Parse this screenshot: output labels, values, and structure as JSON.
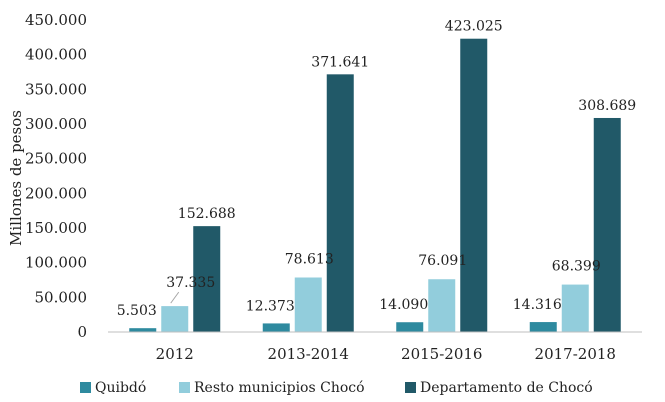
{
  "chart_data": {
    "type": "bar",
    "categories": [
      "2012",
      "2013-2014",
      "2015-2016",
      "2017-2018"
    ],
    "series": [
      {
        "name": "Quibdó",
        "color": "#2e8a9f",
        "values": [
          5503,
          12373,
          14090,
          14316
        ],
        "labels": [
          "5.503",
          "12.373",
          "14.090",
          "14.316"
        ]
      },
      {
        "name": "Resto municipios Chocó",
        "color": "#92cddc",
        "values": [
          37335,
          78613,
          76091,
          68399
        ],
        "labels": [
          "37.335",
          "78.613",
          "76.091",
          "68.399"
        ]
      },
      {
        "name": "Departamento de Chocó",
        "color": "#215968",
        "values": [
          152688,
          371641,
          423025,
          308689
        ],
        "labels": [
          "152.688",
          "371.641",
          "423.025",
          "308.689"
        ]
      }
    ],
    "ylabel": "Millones de pesos",
    "ylim": [
      0,
      450000
    ],
    "yticks": [
      {
        "value": 0,
        "label": "0"
      },
      {
        "value": 50000,
        "label": "50.000"
      },
      {
        "value": 100000,
        "label": "100.000"
      },
      {
        "value": 150000,
        "label": "150.000"
      },
      {
        "value": 200000,
        "label": "200.000"
      },
      {
        "value": 250000,
        "label": "250.000"
      },
      {
        "value": 300000,
        "label": "300.000"
      },
      {
        "value": 350000,
        "label": "350.000"
      },
      {
        "value": 400000,
        "label": "400.000"
      },
      {
        "value": 450000,
        "label": "450.000"
      }
    ],
    "grid": false,
    "legend": "bottom"
  }
}
